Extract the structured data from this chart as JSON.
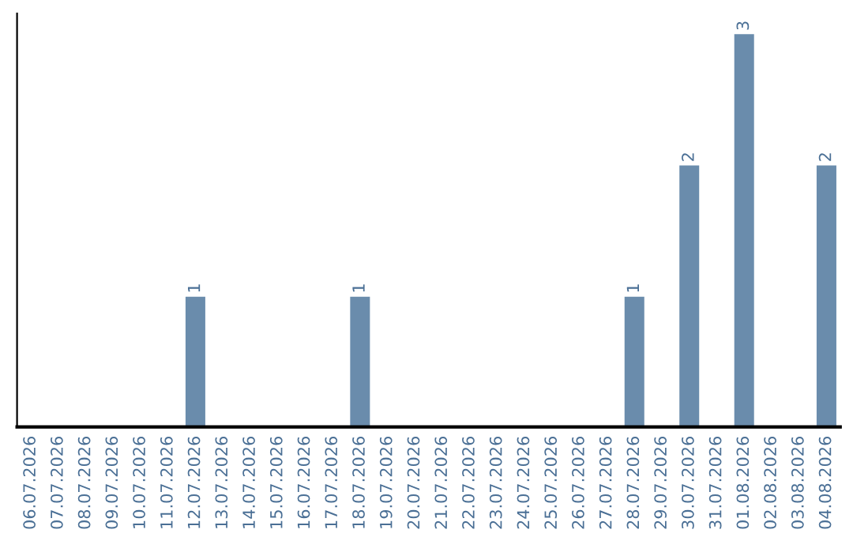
{
  "chart_data": {
    "type": "bar",
    "categories": [
      "06.07.2026",
      "07.07.2026",
      "08.07.2026",
      "09.07.2026",
      "10.07.2026",
      "11.07.2026",
      "12.07.2026",
      "13.07.2026",
      "14.07.2026",
      "15.07.2026",
      "16.07.2026",
      "17.07.2026",
      "18.07.2026",
      "19.07.2026",
      "20.07.2026",
      "21.07.2026",
      "22.07.2026",
      "23.07.2026",
      "24.07.2026",
      "25.07.2026",
      "26.07.2026",
      "27.07.2026",
      "28.07.2026",
      "29.07.2026",
      "30.07.2026",
      "31.07.2026",
      "01.08.2026",
      "02.08.2026",
      "03.08.2026",
      "04.08.2026"
    ],
    "values": [
      null,
      null,
      null,
      null,
      null,
      null,
      1,
      null,
      null,
      null,
      null,
      null,
      1,
      null,
      null,
      null,
      null,
      null,
      null,
      null,
      null,
      null,
      1,
      null,
      2,
      null,
      3,
      null,
      null,
      2
    ],
    "value_labels": [
      null,
      null,
      null,
      null,
      null,
      null,
      "1",
      null,
      null,
      null,
      null,
      null,
      "1",
      null,
      null,
      null,
      null,
      null,
      null,
      null,
      null,
      null,
      "1",
      null,
      "2",
      null,
      "3",
      null,
      null,
      "2"
    ],
    "color": "#6a8cac",
    "tick_labels": "x",
    "grid": false,
    "legend": false
  }
}
